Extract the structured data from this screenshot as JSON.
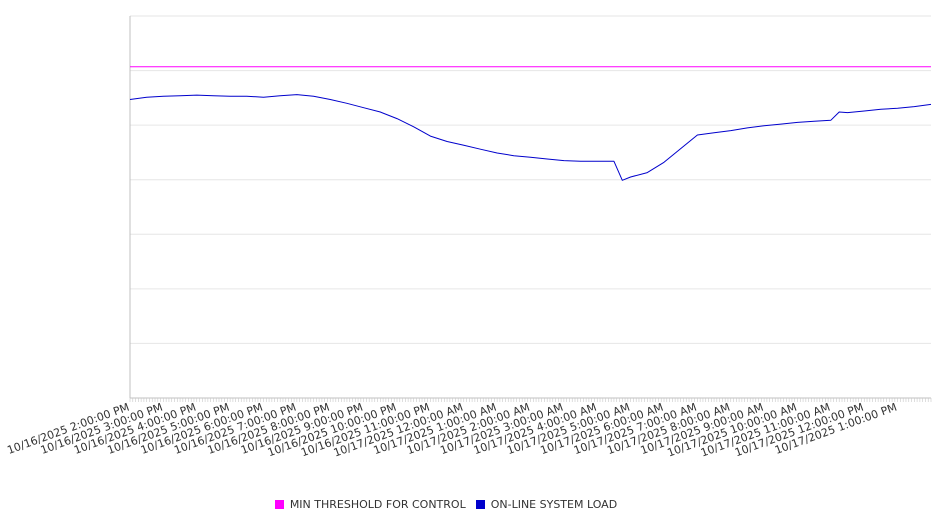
{
  "chart_data": {
    "type": "line",
    "title": "",
    "xlabel": "",
    "ylabel": "",
    "grid": true,
    "legend_position": "bottom",
    "x_range": [
      "10/16/2025 2:00:00 PM",
      "10/17/2025 2:00:00 PM"
    ],
    "ylim": [
      0,
      7
    ],
    "x_tick_labels": [
      "10/16/2025 2:00:00 PM",
      "10/16/2025 3:00:00 PM",
      "10/16/2025 4:00:00 PM",
      "10/16/2025 5:00:00 PM",
      "10/16/2025 6:00:00 PM",
      "10/16/2025 7:00:00 PM",
      "10/16/2025 8:00:00 PM",
      "10/16/2025 9:00:00 PM",
      "10/16/2025 10:00:00 PM",
      "10/16/2025 11:00:00 PM",
      "10/17/2025 12:00:00 AM",
      "10/17/2025 1:00:00 AM",
      "10/17/2025 2:00:00 AM",
      "10/17/2025 3:00:00 AM",
      "10/17/2025 4:00:00 AM",
      "10/17/2025 5:00:00 AM",
      "10/17/2025 6:00:00 AM",
      "10/17/2025 7:00:00 AM",
      "10/17/2025 8:00:00 AM",
      "10/17/2025 9:00:00 AM",
      "10/17/2025 10:00:00 AM",
      "10/17/2025 11:00:00 AM",
      "10/17/2025 12:00:00 PM",
      "10/17/2025 1:00:00 PM"
    ],
    "series": [
      {
        "name": "MIN THRESHOLD FOR CONTROL",
        "color": "#ff00ff",
        "x": [
          "10/16/2025 2:00:00 PM",
          "10/17/2025 2:00:00 PM"
        ],
        "values": [
          6.07,
          6.07
        ]
      },
      {
        "name": "ON-LINE SYSTEM LOAD",
        "color": "#0000cc",
        "x": [
          "10/16/2025 2:00:00 PM",
          "10/16/2025 2:30:00 PM",
          "10/16/2025 3:00:00 PM",
          "10/16/2025 3:30:00 PM",
          "10/16/2025 4:00:00 PM",
          "10/16/2025 4:30:00 PM",
          "10/16/2025 5:00:00 PM",
          "10/16/2025 5:30:00 PM",
          "10/16/2025 6:00:00 PM",
          "10/16/2025 6:30:00 PM",
          "10/16/2025 7:00:00 PM",
          "10/16/2025 7:30:00 PM",
          "10/16/2025 8:00:00 PM",
          "10/16/2025 8:30:00 PM",
          "10/16/2025 9:00:00 PM",
          "10/16/2025 9:30:00 PM",
          "10/16/2025 10:00:00 PM",
          "10/16/2025 10:30:00 PM",
          "10/16/2025 11:00:00 PM",
          "10/16/2025 11:30:00 PM",
          "10/17/2025 12:00:00 AM",
          "10/17/2025 12:30:00 AM",
          "10/17/2025 1:00:00 AM",
          "10/17/2025 1:30:00 AM",
          "10/17/2025 2:00:00 AM",
          "10/17/2025 2:30:00 AM",
          "10/17/2025 3:00:00 AM",
          "10/17/2025 3:30:00 AM",
          "10/17/2025 4:00:00 AM",
          "10/17/2025 4:30:00 AM",
          "10/17/2025 4:45:00 AM",
          "10/17/2025 5:00:00 AM",
          "10/17/2025 5:30:00 AM",
          "10/17/2025 6:00:00 AM",
          "10/17/2025 6:30:00 AM",
          "10/17/2025 7:00:00 AM",
          "10/17/2025 7:30:00 AM",
          "10/17/2025 8:00:00 AM",
          "10/17/2025 8:30:00 AM",
          "10/17/2025 9:00:00 AM",
          "10/17/2025 9:30:00 AM",
          "10/17/2025 10:00:00 AM",
          "10/17/2025 10:30:00 AM",
          "10/17/2025 11:00:00 AM",
          "10/17/2025 11:15:00 AM",
          "10/17/2025 11:30:00 AM",
          "10/17/2025 12:00:00 PM",
          "10/17/2025 12:30:00 PM",
          "10/17/2025 1:00:00 PM",
          "10/17/2025 1:30:00 PM",
          "10/17/2025 2:00:00 PM"
        ],
        "values": [
          5.47,
          5.51,
          5.53,
          5.54,
          5.55,
          5.54,
          5.53,
          5.53,
          5.51,
          5.54,
          5.56,
          5.53,
          5.47,
          5.4,
          5.32,
          5.24,
          5.12,
          4.97,
          4.8,
          4.7,
          4.63,
          4.56,
          4.49,
          4.44,
          4.41,
          4.38,
          4.35,
          4.34,
          4.34,
          4.34,
          3.99,
          4.05,
          4.13,
          4.32,
          4.57,
          4.82,
          4.86,
          4.9,
          4.95,
          4.99,
          5.02,
          5.05,
          5.07,
          5.09,
          5.24,
          5.23,
          5.26,
          5.29,
          5.31,
          5.34,
          5.38
        ]
      }
    ]
  }
}
